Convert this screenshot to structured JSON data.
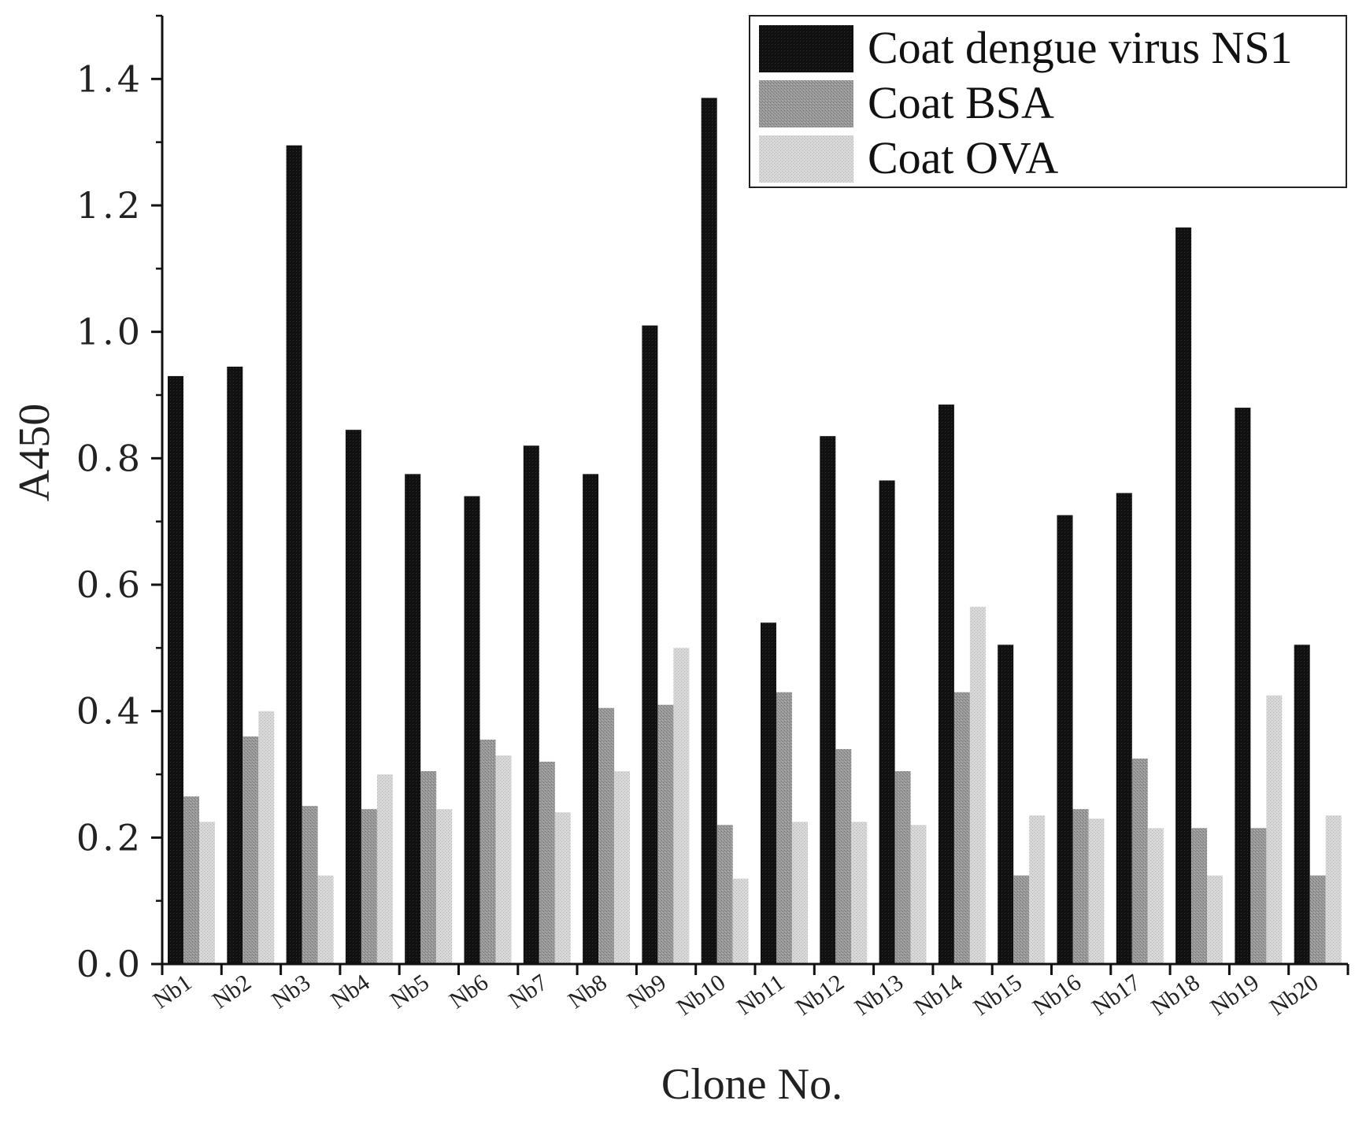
{
  "chart_data": {
    "type": "bar",
    "title": "",
    "xlabel": "Clone No.",
    "ylabel": "A450",
    "ylim": [
      0,
      1.5
    ],
    "yticks": [
      "0.0",
      "0.2",
      "0.4",
      "0.6",
      "0.8",
      "1.0",
      "1.2",
      "1.4"
    ],
    "grid": false,
    "legend_position": "top-right",
    "categories": [
      "Nb1",
      "Nb2",
      "Nb3",
      "Nb4",
      "Nb5",
      "Nb6",
      "Nb7",
      "Nb8",
      "Nb9",
      "Nb10",
      "Nb11",
      "Nb12",
      "Nb13",
      "Nb14",
      "Nb15",
      "Nb16",
      "Nb17",
      "Nb18",
      "Nb19",
      "Nb20"
    ],
    "series": [
      {
        "name": "Coat dengue virus NS1",
        "color": "#111111",
        "values": [
          0.93,
          0.945,
          1.295,
          0.845,
          0.775,
          0.74,
          0.82,
          0.775,
          1.01,
          1.37,
          0.54,
          0.835,
          0.765,
          0.885,
          0.505,
          0.71,
          0.745,
          1.165,
          0.88,
          0.505
        ]
      },
      {
        "name": "Coat BSA",
        "color": "#8a8a8a",
        "values": [
          0.265,
          0.36,
          0.25,
          0.245,
          0.305,
          0.355,
          0.32,
          0.405,
          0.41,
          0.22,
          0.43,
          0.34,
          0.305,
          0.43,
          0.14,
          0.245,
          0.325,
          0.215,
          0.215,
          0.14
        ]
      },
      {
        "name": "Coat OVA",
        "color": "#cfcfcf",
        "values": [
          0.225,
          0.4,
          0.14,
          0.3,
          0.245,
          0.33,
          0.24,
          0.305,
          0.5,
          0.135,
          0.225,
          0.225,
          0.22,
          0.565,
          0.235,
          0.23,
          0.215,
          0.14,
          0.425,
          0.235
        ]
      }
    ]
  }
}
